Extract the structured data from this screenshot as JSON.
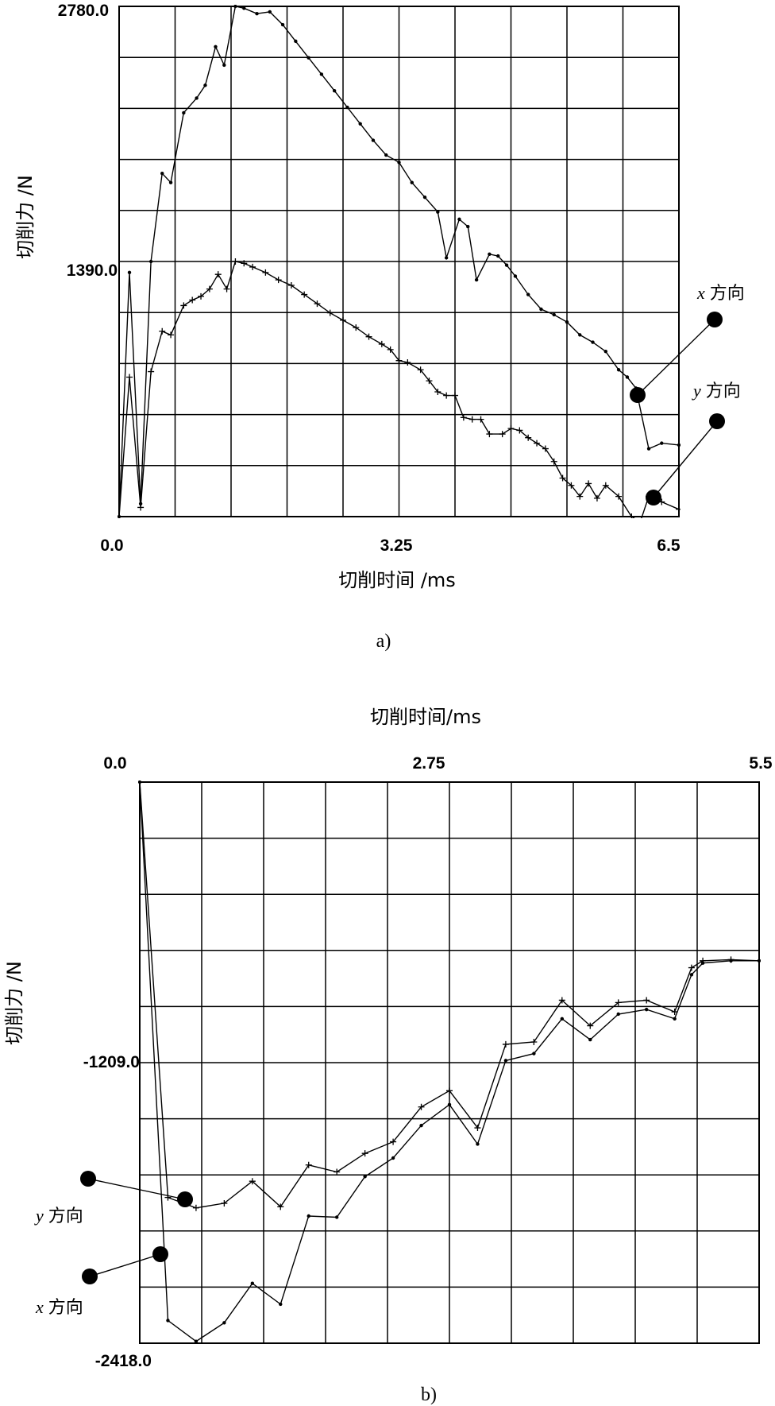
{
  "chart_data": [
    {
      "id": "a",
      "type": "line",
      "caption": "a)",
      "title": "",
      "xlabel": "切削时间 /ms",
      "ylabel": "切削力 /N",
      "xlim": [
        0,
        6.5
      ],
      "ylim": [
        0,
        2780
      ],
      "x_tick_labels": [
        "0.0",
        "3.25",
        "6.5"
      ],
      "y_tick_labels": [
        "2780.0",
        "1390.0"
      ],
      "grid": true,
      "series": [
        {
          "name": "x 方向",
          "marker": "dot",
          "x": [
            0.0,
            0.12,
            0.25,
            0.37,
            0.5,
            0.6,
            0.75,
            0.9,
            1.0,
            1.12,
            1.22,
            1.35,
            1.45,
            1.6,
            1.75,
            1.9,
            2.05,
            2.2,
            2.35,
            2.5,
            2.65,
            2.8,
            2.95,
            3.1,
            3.25,
            3.4,
            3.55,
            3.7,
            3.8,
            3.95,
            4.05,
            4.15,
            4.3,
            4.4,
            4.5,
            4.6,
            4.75,
            4.9,
            5.05,
            5.2,
            5.35,
            5.5,
            5.65,
            5.8,
            5.9,
            6.0,
            6.15,
            6.3,
            6.5
          ],
          "y": [
            0,
            1330,
            70,
            1390,
            1870,
            1820,
            2200,
            2280,
            2350,
            2560,
            2460,
            2780,
            2770,
            2740,
            2750,
            2680,
            2590,
            2500,
            2410,
            2320,
            2230,
            2140,
            2050,
            1970,
            1930,
            1820,
            1740,
            1660,
            1410,
            1620,
            1580,
            1290,
            1430,
            1420,
            1370,
            1310,
            1210,
            1130,
            1100,
            1060,
            990,
            950,
            900,
            800,
            760,
            700,
            370,
            400,
            390
          ]
        },
        {
          "name": "y 方向",
          "marker": "plus",
          "x": [
            0.0,
            0.12,
            0.25,
            0.37,
            0.5,
            0.6,
            0.75,
            0.85,
            0.95,
            1.05,
            1.15,
            1.25,
            1.35,
            1.45,
            1.55,
            1.7,
            1.85,
            2.0,
            2.15,
            2.3,
            2.45,
            2.6,
            2.75,
            2.9,
            3.05,
            3.15,
            3.25,
            3.35,
            3.5,
            3.6,
            3.7,
            3.8,
            3.9,
            4.0,
            4.1,
            4.2,
            4.3,
            4.45,
            4.55,
            4.65,
            4.75,
            4.85,
            4.95,
            5.05,
            5.15,
            5.25,
            5.35,
            5.45,
            5.55,
            5.65,
            5.8,
            5.95,
            6.05,
            6.15,
            6.3,
            6.5
          ],
          "y": [
            0,
            760,
            50,
            790,
            1010,
            990,
            1150,
            1180,
            1200,
            1240,
            1320,
            1240,
            1390,
            1380,
            1360,
            1330,
            1290,
            1260,
            1210,
            1160,
            1110,
            1070,
            1030,
            980,
            940,
            910,
            850,
            840,
            800,
            740,
            680,
            660,
            660,
            540,
            530,
            530,
            450,
            450,
            480,
            470,
            430,
            400,
            370,
            300,
            210,
            170,
            110,
            180,
            100,
            170,
            110,
            0,
            -30,
            110,
            80,
            40
          ]
        }
      ],
      "legend": [
        {
          "var": "x",
          "label": "方向"
        },
        {
          "var": "y",
          "label": "方向"
        }
      ]
    },
    {
      "id": "b",
      "type": "line",
      "caption": "b)",
      "title": "",
      "xlabel": "切削时间/ms",
      "ylabel": "切削力 /N",
      "xlim": [
        0,
        5.5
      ],
      "ylim": [
        -2418,
        0
      ],
      "x_tick_labels": [
        "0.0",
        "2.75",
        "5.5"
      ],
      "y_tick_labels": [
        "-1209.0",
        "-2418.0"
      ],
      "grid": true,
      "series": [
        {
          "name": "y 方向",
          "marker": "plus",
          "x": [
            0.0,
            0.25,
            0.5,
            0.75,
            1.0,
            1.25,
            1.5,
            1.75,
            2.0,
            2.25,
            2.5,
            2.75,
            3.0,
            3.25,
            3.5,
            3.75,
            4.0,
            4.25,
            4.5,
            4.75,
            4.9,
            5.0,
            5.25,
            5.5
          ],
          "y": [
            0,
            -1790,
            -1835,
            -1815,
            -1720,
            -1830,
            -1650,
            -1680,
            -1600,
            -1550,
            -1400,
            -1330,
            -1490,
            -1130,
            -1120,
            -940,
            -1050,
            -950,
            -940,
            -990,
            -800,
            -770,
            -765,
            -770
          ]
        },
        {
          "name": "x 方向",
          "marker": "dot",
          "x": [
            0.0,
            0.25,
            0.5,
            0.75,
            1.0,
            1.25,
            1.5,
            1.75,
            2.0,
            2.25,
            2.5,
            2.75,
            3.0,
            3.25,
            3.5,
            3.75,
            4.0,
            4.25,
            4.5,
            4.75,
            4.9,
            5.0,
            5.25,
            5.5
          ],
          "y": [
            0,
            -2320,
            -2410,
            -2330,
            -2160,
            -2250,
            -1870,
            -1875,
            -1700,
            -1620,
            -1480,
            -1390,
            -1560,
            -1200,
            -1170,
            -1020,
            -1110,
            -1000,
            -980,
            -1020,
            -830,
            -780,
            -770,
            -770
          ]
        }
      ],
      "legend": [
        {
          "var": "y",
          "label": "方向"
        },
        {
          "var": "x",
          "label": "方向"
        }
      ]
    }
  ]
}
